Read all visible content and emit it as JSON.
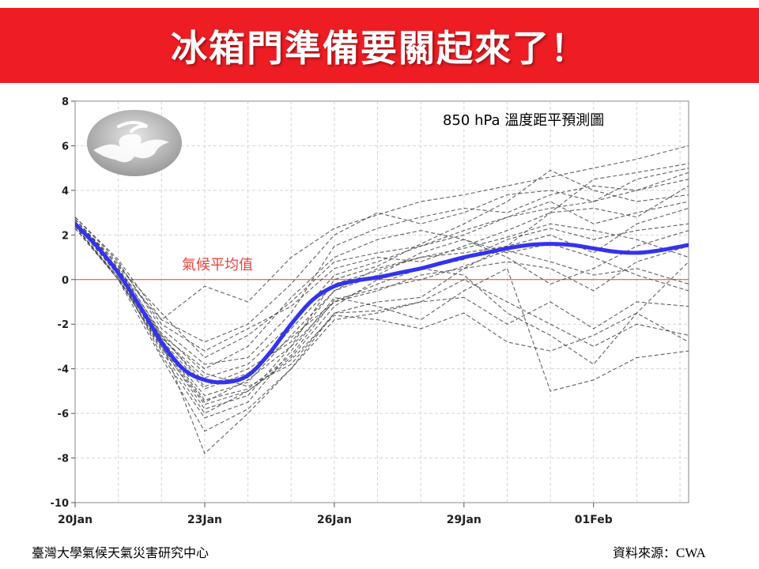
{
  "banner": {
    "title": "冰箱門準備要關起來了！",
    "background": "#ee1d23"
  },
  "chart_data": {
    "type": "line",
    "title": "850 hPa 溫度距平預測圖",
    "reference_line": {
      "value": 0,
      "label": "氣候平均值",
      "color": "#e8443a"
    },
    "xlabel": "",
    "ylabel": "",
    "x_ticks": [
      "20Jan",
      "23Jan",
      "26Jan",
      "29Jan",
      "01Feb"
    ],
    "x_tick_days": [
      0,
      3,
      6,
      9,
      12
    ],
    "xlim": [
      0,
      14.2
    ],
    "ylim": [
      -10,
      8
    ],
    "y_ticks": [
      "8",
      "6",
      "4",
      "2",
      "0",
      "-2",
      "-4",
      "-6",
      "-8",
      "-10"
    ],
    "grid": true,
    "ensemble_mean": {
      "color": "#3333ee",
      "x": [
        0,
        0.5,
        1,
        1.5,
        2,
        2.5,
        3,
        3.5,
        4,
        4.5,
        5,
        5.5,
        6,
        6.5,
        7,
        7.5,
        8,
        8.5,
        9,
        9.5,
        10,
        10.5,
        11,
        11.5,
        12,
        12.5,
        13,
        13.5,
        14.2
      ],
      "values": [
        2.5,
        1.5,
        0.3,
        -1.2,
        -2.8,
        -4.0,
        -4.5,
        -4.6,
        -4.3,
        -3.3,
        -2.0,
        -0.9,
        -0.3,
        -0.05,
        0.1,
        0.3,
        0.5,
        0.75,
        1.0,
        1.2,
        1.4,
        1.55,
        1.6,
        1.55,
        1.4,
        1.25,
        1.2,
        1.3,
        1.55
      ]
    },
    "members_color": "#444444",
    "member_x": [
      0,
      1,
      2,
      3,
      4,
      5,
      6,
      7,
      8,
      9,
      10,
      11,
      12,
      13,
      14.2
    ],
    "members": [
      [
        2.7,
        0.6,
        -1.5,
        -3.5,
        -2.5,
        -1.0,
        0.8,
        1.2,
        1.5,
        2.0,
        2.8,
        3.2,
        3.5,
        4.0,
        4.8
      ],
      [
        2.6,
        0.4,
        -1.8,
        -0.3,
        -1.0,
        1.0,
        2.3,
        2.9,
        3.5,
        3.8,
        4.2,
        4.6,
        5.0,
        5.4,
        6.0
      ],
      [
        2.5,
        0.3,
        -2.5,
        -4.8,
        -4.0,
        -2.8,
        -0.5,
        0.5,
        1.0,
        1.2,
        1.5,
        2.0,
        1.2,
        2.5,
        3.2
      ],
      [
        2.4,
        0.0,
        -3.0,
        -5.5,
        -4.5,
        -3.0,
        -1.0,
        -0.5,
        0.2,
        0.5,
        0.8,
        0.5,
        -0.5,
        0.8,
        1.5
      ],
      [
        2.6,
        0.5,
        -2.8,
        -7.8,
        -6.0,
        -4.0,
        -1.5,
        -1.0,
        -0.8,
        0.5,
        1.5,
        3.0,
        4.5,
        4.8,
        5.2
      ],
      [
        2.8,
        0.8,
        -2.2,
        -3.8,
        -3.5,
        -1.5,
        1.5,
        2.3,
        2.8,
        3.2,
        3.0,
        3.8,
        4.2,
        4.0,
        4.5
      ],
      [
        2.5,
        0.2,
        -2.6,
        -4.4,
        -3.8,
        -2.0,
        0.2,
        0.8,
        1.5,
        2.2,
        2.8,
        3.5,
        2.5,
        3.0,
        3.5
      ],
      [
        2.3,
        0.1,
        -3.2,
        -6.0,
        -5.0,
        -3.5,
        -1.2,
        0.0,
        0.5,
        0.2,
        -1.5,
        -2.5,
        -3.8,
        -1.5,
        0.8
      ],
      [
        2.6,
        0.4,
        -2.9,
        -5.2,
        -4.6,
        -2.5,
        -0.5,
        0.2,
        1.2,
        1.8,
        1.0,
        -0.2,
        0.5,
        1.5,
        2.2
      ],
      [
        2.7,
        0.7,
        -2.0,
        -3.2,
        -2.2,
        -1.2,
        0.5,
        1.0,
        0.8,
        1.5,
        2.2,
        3.0,
        3.2,
        2.8,
        4.2
      ],
      [
        2.5,
        0.3,
        -3.4,
        -6.2,
        -5.5,
        -3.2,
        -0.8,
        -1.2,
        -1.8,
        -0.5,
        0.5,
        -5.0,
        -4.5,
        -3.5,
        -3.2
      ],
      [
        2.4,
        0.0,
        -2.7,
        -4.9,
        -4.2,
        -2.6,
        -1.0,
        -0.2,
        0.5,
        0.9,
        1.8,
        2.3,
        1.8,
        2.2,
        2.5
      ],
      [
        2.6,
        0.5,
        -2.4,
        -4.2,
        -4.8,
        -3.8,
        -1.5,
        -1.4,
        -1.0,
        0.0,
        -1.0,
        -2.0,
        -3.0,
        -2.0,
        -2.5
      ],
      [
        2.5,
        0.2,
        -3.0,
        -5.8,
        -5.2,
        -3.0,
        0.0,
        0.6,
        1.6,
        2.5,
        3.5,
        4.9,
        4.0,
        3.5,
        3.8
      ],
      [
        2.7,
        0.6,
        -2.5,
        -4.0,
        -3.0,
        -0.8,
        1.0,
        1.8,
        2.2,
        1.8,
        1.2,
        1.6,
        1.0,
        0.2,
        -0.5
      ],
      [
        2.3,
        0.0,
        -3.5,
        -6.8,
        -5.8,
        -4.0,
        -1.8,
        -1.5,
        -1.0,
        -0.8,
        -2.0,
        -1.0,
        -2.2,
        -1.0,
        -1.2
      ],
      [
        2.6,
        0.4,
        -2.6,
        -4.6,
        -4.4,
        -2.2,
        -0.2,
        0.4,
        1.0,
        1.4,
        1.9,
        2.5,
        2.2,
        1.8,
        1.0
      ],
      [
        2.5,
        0.3,
        -2.9,
        -5.4,
        -4.9,
        -3.4,
        -0.9,
        -0.4,
        0.0,
        0.6,
        1.3,
        0.8,
        0.2,
        0.5,
        -0.2
      ],
      [
        2.8,
        0.9,
        -1.8,
        -2.8,
        -2.0,
        -0.2,
        2.0,
        3.0,
        2.5,
        3.0,
        3.8,
        4.0,
        3.5,
        4.5,
        5.0
      ],
      [
        2.4,
        0.1,
        -3.1,
        -5.6,
        -5.0,
        -3.6,
        -1.6,
        -1.8,
        -2.2,
        -1.5,
        -2.8,
        -3.2,
        -2.5,
        -1.5,
        -2.8
      ]
    ]
  },
  "footer": {
    "left": "臺灣大學氣候天氣災害研究中心",
    "right_label": "資料來源：",
    "right_source": "CWA"
  }
}
